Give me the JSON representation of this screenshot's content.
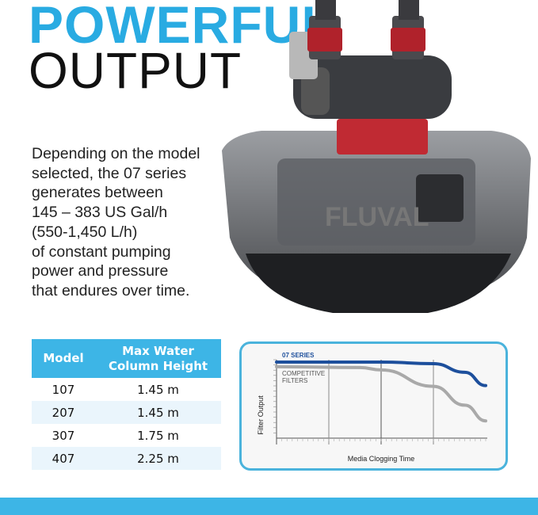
{
  "headline": {
    "line1": "POWERFUL",
    "line2": "OUTPUT"
  },
  "description": [
    "Depending on the model",
    "selected, the 07 series",
    "generates between",
    "145 – 383 US Gal/h",
    "(550-1,450 L/h)",
    "of constant pumping",
    "power and pressure",
    "that endures over time."
  ],
  "product_logo": "FLUVAL",
  "table": {
    "headers": [
      "Model",
      "Max Water Column Height"
    ],
    "rows": [
      [
        "107",
        "1.45 m"
      ],
      [
        "207",
        "1.45 m"
      ],
      [
        "307",
        "1.75 m"
      ],
      [
        "407",
        "2.25 m"
      ]
    ]
  },
  "chart_data": {
    "type": "line",
    "xlabel": "Media Clogging Time",
    "ylabel": "Filter Output",
    "xlim": [
      0,
      100
    ],
    "ylim": [
      0,
      100
    ],
    "grid": true,
    "series": [
      {
        "name": "07 SERIES",
        "color": "#1d4f9c",
        "x": [
          0,
          50,
          75,
          90,
          100
        ],
        "y": [
          97,
          97,
          95,
          84,
          67
        ]
      },
      {
        "name": "COMPETITIVE FILTERS",
        "color": "#a9a9a9",
        "x": [
          0,
          40,
          50,
          75,
          90,
          100
        ],
        "y": [
          91,
          90,
          87,
          66,
          42,
          22
        ]
      }
    ]
  },
  "colors": {
    "accent": "#29abe2",
    "table_header": "#3db5e6",
    "chart_border": "#4ab3dc"
  }
}
